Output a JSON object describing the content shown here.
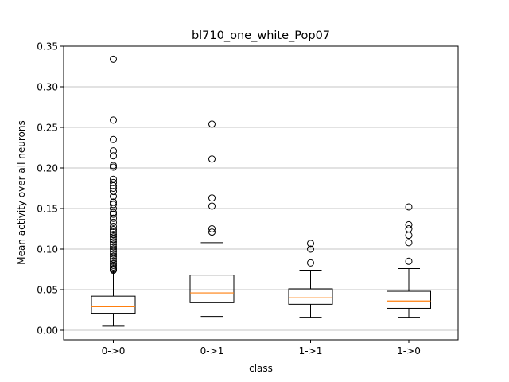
{
  "chart_data": {
    "type": "box",
    "title": "bl710_one_white_Pop07",
    "xlabel": "class",
    "ylabel": "Mean activity over all neurons",
    "ylim": [
      -0.012,
      0.35
    ],
    "yticks": [
      0.0,
      0.05,
      0.1,
      0.15,
      0.2,
      0.25,
      0.3,
      0.35
    ],
    "ytick_labels": [
      "0.00",
      "0.05",
      "0.10",
      "0.15",
      "0.20",
      "0.25",
      "0.30",
      "0.35"
    ],
    "grid": "horizontal",
    "colors": {
      "box": "#000000",
      "median": "#ff7f0e",
      "grid": "#b0b0b0",
      "flier": "#000000"
    },
    "categories": [
      "0->0",
      "0->1",
      "1->1",
      "1->0"
    ],
    "boxes": [
      {
        "label": "0->0",
        "whisker_low": 0.005,
        "q1": 0.021,
        "median": 0.029,
        "q3": 0.042,
        "whisker_high": 0.073,
        "fliers": [
          0.334,
          0.259,
          0.235,
          0.221,
          0.215,
          0.203,
          0.201,
          0.186,
          0.182,
          0.178,
          0.175,
          0.171,
          0.165,
          0.158,
          0.155,
          0.15,
          0.145,
          0.143,
          0.138,
          0.133,
          0.128,
          0.124,
          0.121,
          0.118,
          0.115,
          0.112,
          0.109,
          0.106,
          0.103,
          0.1,
          0.097,
          0.094,
          0.091,
          0.088,
          0.085,
          0.082,
          0.08,
          0.078,
          0.076,
          0.075,
          0.074
        ]
      },
      {
        "label": "0->1",
        "whisker_low": 0.017,
        "q1": 0.034,
        "median": 0.046,
        "q3": 0.068,
        "whisker_high": 0.108,
        "fliers": [
          0.254,
          0.211,
          0.163,
          0.153,
          0.125,
          0.121
        ]
      },
      {
        "label": "1->1",
        "whisker_low": 0.016,
        "q1": 0.032,
        "median": 0.04,
        "q3": 0.051,
        "whisker_high": 0.074,
        "fliers": [
          0.107,
          0.1,
          0.083
        ]
      },
      {
        "label": "1->0",
        "whisker_low": 0.016,
        "q1": 0.027,
        "median": 0.036,
        "q3": 0.048,
        "whisker_high": 0.076,
        "fliers": [
          0.152,
          0.13,
          0.125,
          0.117,
          0.108,
          0.085
        ]
      }
    ]
  }
}
